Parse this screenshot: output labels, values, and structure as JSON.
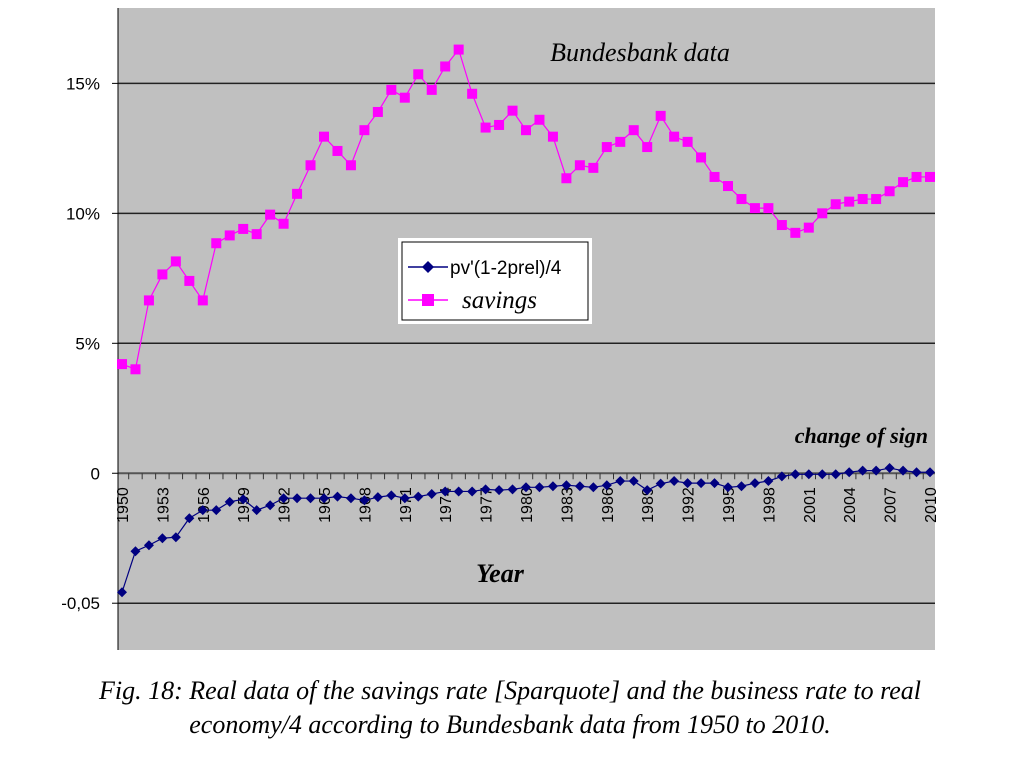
{
  "chart_data": {
    "type": "line",
    "title": "Bundesbank data",
    "xlabel": "Year",
    "ylabel": "",
    "annotation": "change of sign",
    "ylim": [
      -0.068,
      0.179
    ],
    "xlim": [
      1950,
      2010
    ],
    "grid": true,
    "legend_position": "center",
    "yticks": [
      {
        "value": 0.15,
        "label": "15%"
      },
      {
        "value": 0.1,
        "label": "10%"
      },
      {
        "value": 0.05,
        "label": "5%"
      },
      {
        "value": 0,
        "label": "0"
      },
      {
        "value": -0.05,
        "label": "-0,05"
      }
    ],
    "xtick_labels": [
      "1950",
      "1953",
      "1956",
      "1959",
      "1962",
      "1965",
      "1968",
      "1971",
      "1974",
      "1977",
      "1980",
      "1983",
      "1986",
      "1989",
      "1992",
      "1995",
      "1998",
      "2001",
      "2004",
      "2007",
      "2010"
    ],
    "x": [
      1950,
      1951,
      1952,
      1953,
      1954,
      1955,
      1956,
      1957,
      1958,
      1959,
      1960,
      1961,
      1962,
      1963,
      1964,
      1965,
      1966,
      1967,
      1968,
      1969,
      1970,
      1971,
      1972,
      1973,
      1974,
      1975,
      1976,
      1977,
      1978,
      1979,
      1980,
      1981,
      1982,
      1983,
      1984,
      1985,
      1986,
      1987,
      1988,
      1989,
      1990,
      1991,
      1992,
      1993,
      1994,
      1995,
      1996,
      1997,
      1998,
      1999,
      2000,
      2001,
      2002,
      2003,
      2004,
      2005,
      2006,
      2007,
      2008,
      2009,
      2010
    ],
    "series": [
      {
        "name": "pv'(1-2prel)/4",
        "color": "#000080",
        "marker": "diamond",
        "values": [
          -0.0458,
          -0.03,
          -0.0277,
          -0.025,
          -0.0246,
          -0.0173,
          -0.0142,
          -0.0142,
          -0.011,
          -0.01,
          -0.0142,
          -0.0123,
          -0.0096,
          -0.0096,
          -0.0096,
          -0.0096,
          -0.009,
          -0.0096,
          -0.0104,
          -0.0092,
          -0.0085,
          -0.0096,
          -0.009,
          -0.008,
          -0.007,
          -0.007,
          -0.007,
          -0.0062,
          -0.0065,
          -0.0062,
          -0.0054,
          -0.0054,
          -0.005,
          -0.0046,
          -0.005,
          -0.0054,
          -0.0046,
          -0.003,
          -0.003,
          -0.0065,
          -0.004,
          -0.003,
          -0.0038,
          -0.0038,
          -0.0038,
          -0.0054,
          -0.005,
          -0.0038,
          -0.003,
          -0.0012,
          -0.0004,
          -0.0004,
          -0.0004,
          -0.0004,
          0.0004,
          0.001,
          0.001,
          0.002,
          0.001,
          0.0004,
          0.0004
        ]
      },
      {
        "name": "savings",
        "color": "#ff00ff",
        "marker": "square",
        "values": [
          0.042,
          0.04,
          0.0665,
          0.0765,
          0.0815,
          0.074,
          0.0665,
          0.0885,
          0.0915,
          0.094,
          0.092,
          0.0995,
          0.096,
          0.1075,
          0.1185,
          0.1295,
          0.124,
          0.1185,
          0.132,
          0.139,
          0.1475,
          0.1445,
          0.1535,
          0.1475,
          0.1565,
          0.163,
          0.146,
          0.133,
          0.134,
          0.1395,
          0.132,
          0.136,
          0.1295,
          0.1135,
          0.1185,
          0.1175,
          0.1255,
          0.1275,
          0.132,
          0.1255,
          0.1375,
          0.1295,
          0.1275,
          0.1215,
          0.114,
          0.1105,
          0.1055,
          0.102,
          0.102,
          0.0955,
          0.0925,
          0.0945,
          0.1,
          0.1035,
          0.1045,
          0.1055,
          0.1055,
          0.1085,
          0.112,
          0.114,
          0.114
        ]
      }
    ]
  },
  "caption": {
    "line1": "Fig. 18: Real data of the savings rate [Sparquote] and the business rate to real",
    "line2": "economy/4 according to Bundesbank data from 1950 to 2010."
  }
}
